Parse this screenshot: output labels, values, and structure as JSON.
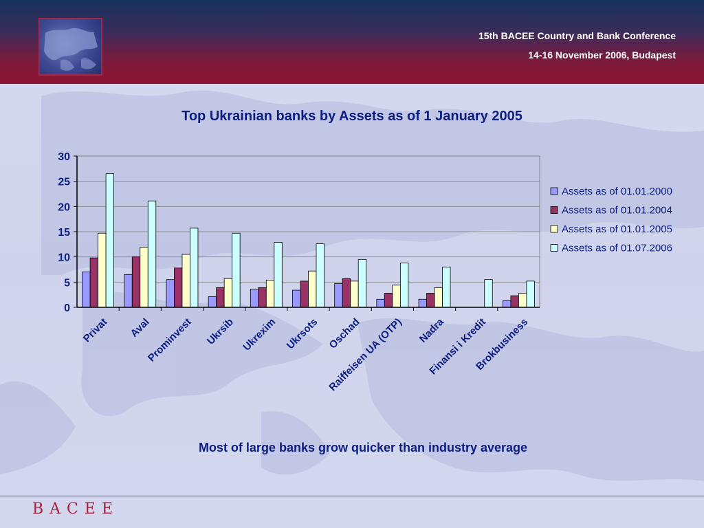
{
  "header": {
    "conference": "15th BACEE Country and Bank Conference",
    "dates": "14-16 November 2006, Budapest"
  },
  "footer": {
    "logo_text": "BACEE"
  },
  "note": "Most of large banks grow quicker than industry average",
  "colors": {
    "title": "#0c1e82",
    "header_top": "#16335f",
    "header_bottom": "#8d1331",
    "footer_accent": "#a3213d"
  },
  "chart_data": {
    "type": "bar",
    "title": "Top Ukrainian banks by Assets as of 1 January 2005",
    "categories": [
      "Privat",
      "Aval",
      "Prominvest",
      "Ukrsib",
      "Ukrexim",
      "Ukrsots",
      "Oschad",
      "Raiffeisen UA (OTP)",
      "Nadra",
      "Finansi i Kredit",
      "Brokbusiness"
    ],
    "series": [
      {
        "name": "Assets as of 01.01.2000",
        "color": "#9999ff",
        "values": [
          7.0,
          6.5,
          5.5,
          2.1,
          3.6,
          3.4,
          4.7,
          1.6,
          1.6,
          0,
          1.3
        ]
      },
      {
        "name": "Assets as of 01.01.2004",
        "color": "#993366",
        "values": [
          9.8,
          10.0,
          7.8,
          3.9,
          3.9,
          5.2,
          5.7,
          2.8,
          2.8,
          0,
          2.3
        ]
      },
      {
        "name": "Assets as of 01.01.2005",
        "color": "#ffffcc",
        "values": [
          14.7,
          11.9,
          10.5,
          5.7,
          5.4,
          7.2,
          5.2,
          4.4,
          3.9,
          0,
          2.8
        ]
      },
      {
        "name": "Assets as of 01.07.2006",
        "color": "#ccffff",
        "values": [
          26.5,
          21.1,
          15.7,
          14.7,
          12.9,
          12.6,
          9.5,
          8.8,
          8.0,
          5.5,
          5.2
        ]
      }
    ],
    "ylim": [
      0,
      30
    ],
    "yticks": [
      0,
      5,
      10,
      15,
      20,
      25,
      30
    ],
    "xlabel": "",
    "ylabel": "",
    "legend": "right",
    "grid": true
  }
}
